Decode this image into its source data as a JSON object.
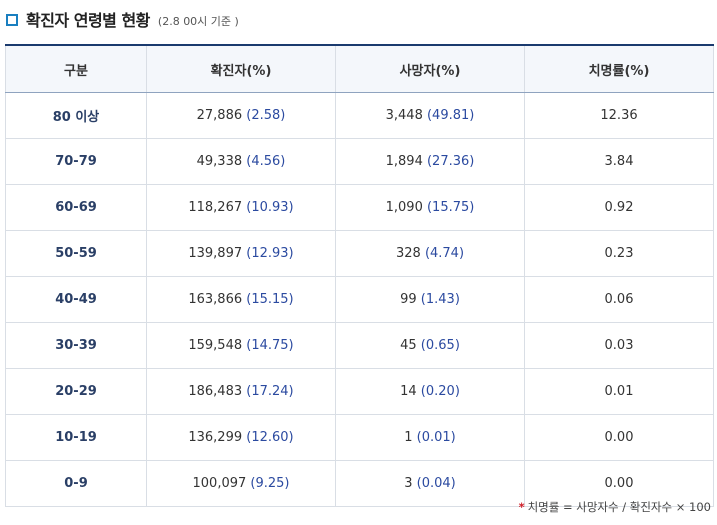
{
  "header": {
    "title": "확진자 연령별 현황",
    "subtitle": "(2.8 00시 기준 )"
  },
  "table": {
    "columns": [
      "구분",
      "확진자(%)",
      "사망자(%)",
      "치명률(%)"
    ],
    "rows": [
      {
        "age": "80 이상",
        "cases": "27,886",
        "cases_pct": "(2.58)",
        "deaths": "3,448",
        "deaths_pct": "(49.81)",
        "fatality": "12.36"
      },
      {
        "age": "70-79",
        "cases": "49,338",
        "cases_pct": "(4.56)",
        "deaths": "1,894",
        "deaths_pct": "(27.36)",
        "fatality": "3.84"
      },
      {
        "age": "60-69",
        "cases": "118,267",
        "cases_pct": "(10.93)",
        "deaths": "1,090",
        "deaths_pct": "(15.75)",
        "fatality": "0.92"
      },
      {
        "age": "50-59",
        "cases": "139,897",
        "cases_pct": "(12.93)",
        "deaths": "328",
        "deaths_pct": "(4.74)",
        "fatality": "0.23"
      },
      {
        "age": "40-49",
        "cases": "163,866",
        "cases_pct": "(15.15)",
        "deaths": "99",
        "deaths_pct": "(1.43)",
        "fatality": "0.06"
      },
      {
        "age": "30-39",
        "cases": "159,548",
        "cases_pct": "(14.75)",
        "deaths": "45",
        "deaths_pct": "(0.65)",
        "fatality": "0.03"
      },
      {
        "age": "20-29",
        "cases": "186,483",
        "cases_pct": "(17.24)",
        "deaths": "14",
        "deaths_pct": "(0.20)",
        "fatality": "0.01"
      },
      {
        "age": "10-19",
        "cases": "136,299",
        "cases_pct": "(12.60)",
        "deaths": "1",
        "deaths_pct": "(0.01)",
        "fatality": "0.00"
      },
      {
        "age": "0-9",
        "cases": "100,097",
        "cases_pct": "(9.25)",
        "deaths": "3",
        "deaths_pct": "(0.04)",
        "fatality": "0.00"
      }
    ]
  },
  "footnote": {
    "star": "*",
    "text": "치명률 = 사망자수 / 확진자수 × 100"
  },
  "colors": {
    "accent": "#1a7fc0",
    "header_border": "#1a3a6e",
    "value_blue": "#2b4aa0",
    "footnote_star": "#d0202a"
  }
}
